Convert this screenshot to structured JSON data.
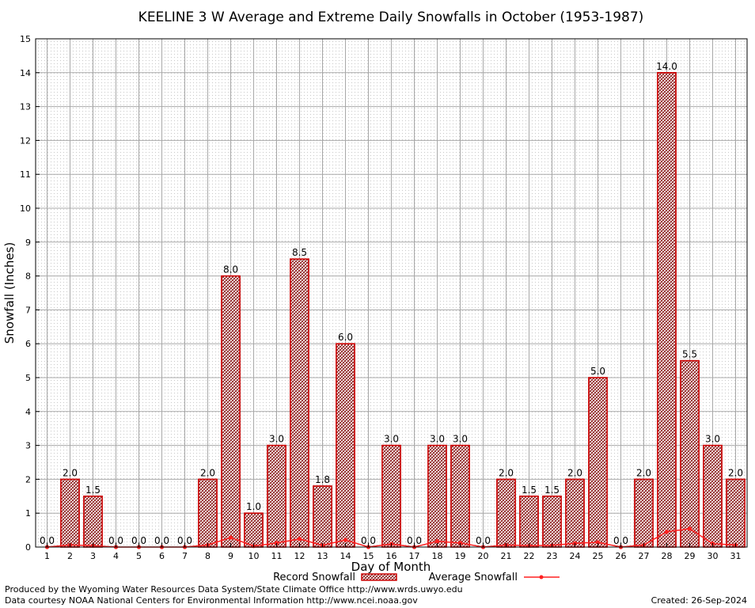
{
  "chart_data": {
    "type": "bar",
    "title": "KEELINE 3 W Average and Extreme Daily Snowfalls in October (1953-1987)",
    "xlabel": "Day of Month",
    "ylabel": "Snowfall (Inches)",
    "ylim": [
      0,
      15
    ],
    "yticks": [
      "0",
      "1",
      "2",
      "3",
      "4",
      "5",
      "6",
      "7",
      "8",
      "9",
      "10",
      "11",
      "12",
      "13",
      "14",
      "15"
    ],
    "categories": [
      "1",
      "2",
      "3",
      "4",
      "5",
      "6",
      "7",
      "8",
      "9",
      "10",
      "11",
      "12",
      "13",
      "14",
      "15",
      "16",
      "17",
      "18",
      "19",
      "20",
      "21",
      "22",
      "23",
      "24",
      "25",
      "26",
      "27",
      "28",
      "29",
      "30",
      "31"
    ],
    "grid": true,
    "legend_position": "bottom",
    "series": [
      {
        "name": "Record Snowfall",
        "kind": "bar",
        "color": "#cc0000",
        "values": [
          0.0,
          2.0,
          1.5,
          0.0,
          0.0,
          0.0,
          0.0,
          2.0,
          8.0,
          1.0,
          3.0,
          8.5,
          1.8,
          6.0,
          0.0,
          3.0,
          0.0,
          3.0,
          3.0,
          0.0,
          2.0,
          1.5,
          1.5,
          2.0,
          5.0,
          0.0,
          2.0,
          14.0,
          5.5,
          3.0,
          2.0
        ],
        "labels": [
          "0.0",
          "2.0",
          "1.5",
          "0.0",
          "0.0",
          "0.0",
          "0.0",
          "2.0",
          "8.0",
          "1.0",
          "3.0",
          "8.5",
          "1.8",
          "6.0",
          "0.0",
          "3.0",
          "0.0",
          "3.0",
          "3.0",
          "0.0",
          "2.0",
          "1.5",
          "1.5",
          "2.0",
          "5.0",
          "0.0",
          "2.0",
          "14.0",
          "5.5",
          "3.0",
          "2.0"
        ]
      },
      {
        "name": "Average Snowfall",
        "kind": "line",
        "color": "#ff2020",
        "values": [
          0.0,
          0.06,
          0.04,
          0.0,
          0.0,
          0.0,
          0.0,
          0.06,
          0.28,
          0.03,
          0.12,
          0.24,
          0.05,
          0.21,
          0.0,
          0.09,
          0.0,
          0.17,
          0.12,
          0.0,
          0.06,
          0.04,
          0.05,
          0.11,
          0.14,
          0.0,
          0.06,
          0.45,
          0.54,
          0.1,
          0.06
        ]
      }
    ]
  },
  "footer": {
    "produced_by": "Produced by the Wyoming Water Resources Data System/State Climate Office http://www.wrds.uwyo.edu",
    "courtesy": "Data courtesy NOAA National Centers for Environmental Information http://www.ncei.noaa.gov",
    "created": "Created:  26-Sep-2024"
  }
}
